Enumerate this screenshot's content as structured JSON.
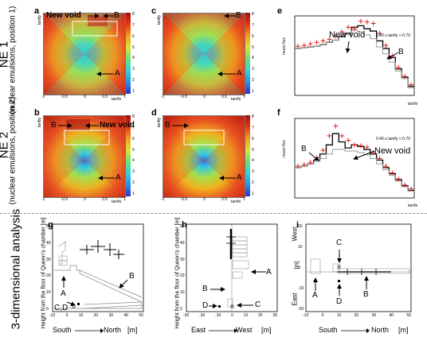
{
  "row_labels": {
    "ne1_title": "NE 1",
    "ne1_sub": "(nuclear emulsions, position 1)",
    "ne2_title": "NE 2",
    "ne2_sub": "(nuclear emulsions, position 2)",
    "three_d": "3-dimensional analysis"
  },
  "panels": {
    "a": "a",
    "b": "b",
    "c": "c",
    "d": "d",
    "e": "e",
    "f": "f",
    "g": "g",
    "h": "h",
    "i": "i"
  },
  "heatmap_axes": {
    "x_label": "tanθx",
    "y_label": "tanθy",
    "ticks": [
      "-1",
      "-0.5",
      "0",
      "0.5",
      "1"
    ],
    "cbar_ticks": [
      "8",
      "7",
      "6",
      "5",
      "4",
      "3",
      "2",
      "1"
    ]
  },
  "annotations": {
    "new_void": "New void",
    "A": "A",
    "B": "B",
    "C": "C",
    "D": "D",
    "CD": "C,D"
  },
  "histograms": {
    "e_range": "0.40 ≤ tanθy < 0.70",
    "f_range": "0.40 ≤ tanθy < 0.70",
    "y_label_e": "muon flux",
    "y_label_f": "muon flux",
    "x_label": "tanθx"
  },
  "bottom_axes": {
    "g_ylabel": "Height from the floor of Queen's chamber [m]",
    "h_ylabel": "Height from the floor of Queen's chamber [m]",
    "g_xlabel_left": "South",
    "g_xlabel_right": "North",
    "g_unit": "[m]",
    "h_xlabel_left": "East",
    "h_xlabel_right": "West",
    "h_unit": "[m]",
    "i_xlabel_left": "South",
    "i_xlabel_right": "North",
    "i_unit": "[m]",
    "i_ylabel_top": "West",
    "i_ylabel_bottom": "East",
    "i_ylabel_unit": "[m]",
    "g_xticks": [
      "-10",
      "0",
      "10",
      "20",
      "30",
      "40",
      "50"
    ],
    "g_yticks": [
      "0",
      "10",
      "20",
      "30",
      "40",
      "50"
    ],
    "h_xticks": [
      "-30",
      "-20",
      "-10",
      "0",
      "10",
      "20",
      "30"
    ],
    "h_yticks": [
      "0",
      "10",
      "20",
      "30",
      "40",
      "50"
    ],
    "i_xticks": [
      "-10",
      "0",
      "10",
      "20",
      "30",
      "40",
      "50"
    ],
    "i_yticks": [
      "-20",
      "-10",
      "0",
      "10",
      "20"
    ]
  },
  "colors": {
    "data_red": "#e02020",
    "sim_black": "#000000",
    "sim_gray": "#9a9a9a"
  },
  "chart_data": [
    {
      "type": "heatmap",
      "panel": "a",
      "xlim": [
        -1,
        1
      ],
      "ylim": [
        -1,
        1
      ],
      "note": "Muon flux map, NE 1 data"
    },
    {
      "type": "heatmap",
      "panel": "c",
      "xlim": [
        -1,
        1
      ],
      "ylim": [
        -1,
        1
      ],
      "note": "Muon flux map, NE 1 simulation"
    },
    {
      "type": "line",
      "panel": "e",
      "xlim": [
        -1,
        1
      ],
      "x": [
        -0.9,
        -0.8,
        -0.7,
        -0.6,
        -0.5,
        -0.4,
        -0.3,
        -0.2,
        -0.1,
        0.0,
        0.1,
        0.2,
        0.3,
        0.4,
        0.5,
        0.6,
        0.7,
        0.8,
        0.9
      ],
      "series": [
        {
          "values": [
            0.62,
            0.63,
            0.64,
            0.65,
            0.67,
            0.7,
            0.73,
            0.78,
            0.82,
            0.9,
            0.92,
            0.88,
            0.85,
            0.72,
            0.62,
            0.5,
            0.35,
            0.24,
            0.12
          ]
        },
        {
          "values": [
            0.62,
            0.63,
            0.64,
            0.65,
            0.67,
            0.7,
            0.73,
            0.77,
            0.8,
            0.86,
            0.84,
            0.8,
            0.75,
            0.64,
            0.55,
            0.44,
            0.32,
            0.22,
            0.1
          ]
        },
        {
          "values": [
            0.65,
            0.66,
            0.68,
            0.7,
            0.72,
            0.74,
            0.78,
            0.84,
            0.9,
            0.88,
            0.98,
            0.97,
            0.95,
            0.82,
            0.66,
            0.52,
            0.37,
            0.25,
            0.14
          ]
        }
      ]
    },
    {
      "type": "line",
      "panel": "f",
      "xlim": [
        -1,
        1
      ],
      "x": [
        -0.9,
        -0.8,
        -0.7,
        -0.6,
        -0.5,
        -0.4,
        -0.3,
        -0.2,
        -0.1,
        0.0,
        0.1,
        0.2,
        0.3,
        0.4,
        0.5,
        0.6,
        0.7,
        0.8,
        0.9
      ],
      "series": [
        {
          "values": [
            0.4,
            0.42,
            0.45,
            0.5,
            0.58,
            0.7,
            0.85,
            0.74,
            0.66,
            0.7,
            0.68,
            0.64,
            0.58,
            0.5,
            0.4,
            0.32,
            0.24,
            0.16,
            0.1
          ]
        },
        {
          "values": [
            0.4,
            0.42,
            0.45,
            0.48,
            0.52,
            0.58,
            0.64,
            0.64,
            0.62,
            0.62,
            0.6,
            0.57,
            0.52,
            0.45,
            0.37,
            0.3,
            0.22,
            0.15,
            0.09
          ]
        },
        {
          "values": [
            0.42,
            0.44,
            0.47,
            0.53,
            0.63,
            0.82,
            0.95,
            0.82,
            0.76,
            0.7,
            0.69,
            0.67,
            0.6,
            0.52,
            0.42,
            0.33,
            0.25,
            0.17,
            0.12
          ]
        }
      ]
    }
  ]
}
